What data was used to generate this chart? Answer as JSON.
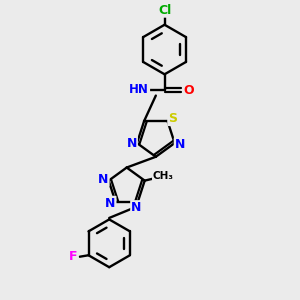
{
  "background_color": "#ebebeb",
  "bond_color": "#000000",
  "atom_colors": {
    "N": "#0000ff",
    "O": "#ff0000",
    "S": "#cccc00",
    "Cl": "#00aa00",
    "F": "#ff00ff",
    "H": "#888888",
    "C": "#000000"
  },
  "figsize": [
    3.0,
    3.0
  ],
  "dpi": 100
}
